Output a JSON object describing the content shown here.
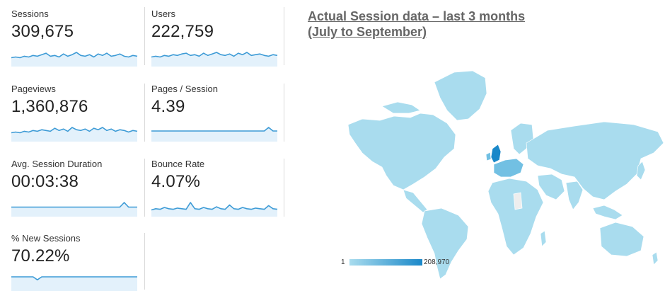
{
  "metrics": {
    "sessions": {
      "label": "Sessions",
      "value": "309,675",
      "trend": [
        6,
        7,
        6,
        8,
        7,
        9,
        8,
        10,
        12,
        8,
        9,
        7,
        11,
        8,
        10,
        13,
        9,
        8,
        10,
        7,
        11,
        9,
        12,
        8,
        9,
        11,
        8,
        7,
        9,
        8
      ]
    },
    "users": {
      "label": "Users",
      "value": "222,759",
      "trend": [
        7,
        8,
        7,
        9,
        8,
        10,
        9,
        11,
        12,
        9,
        10,
        8,
        12,
        9,
        11,
        13,
        10,
        9,
        11,
        8,
        12,
        10,
        13,
        9,
        10,
        11,
        9,
        8,
        10,
        9
      ]
    },
    "pageviews": {
      "label": "Pageviews",
      "value": "1,360,876",
      "trend": [
        6,
        7,
        6,
        8,
        7,
        9,
        8,
        10,
        9,
        8,
        12,
        9,
        11,
        8,
        13,
        10,
        9,
        11,
        8,
        12,
        10,
        13,
        9,
        11,
        8,
        10,
        9,
        7,
        9,
        8
      ]
    },
    "pages_per_session": {
      "label": "Pages / Session",
      "value": "4.39",
      "trend": [
        9,
        9,
        9,
        9,
        9,
        9,
        9,
        9,
        9,
        9,
        9,
        9,
        9,
        9,
        9,
        9,
        9,
        9,
        9,
        9,
        9,
        9,
        9,
        9,
        9,
        9,
        9,
        14,
        9,
        9
      ]
    },
    "avg_session_duration": {
      "label": "Avg. Session Duration",
      "value": "00:03:38",
      "trend": [
        8,
        8,
        8,
        8,
        8,
        8,
        8,
        8,
        8,
        8,
        8,
        8,
        8,
        8,
        8,
        8,
        8,
        8,
        8,
        8,
        8,
        8,
        8,
        8,
        8,
        8,
        15,
        8,
        8,
        8
      ]
    },
    "bounce_rate": {
      "label": "Bounce Rate",
      "value": "4.07%",
      "trend": [
        4,
        6,
        5,
        8,
        6,
        5,
        7,
        6,
        5,
        16,
        6,
        5,
        8,
        6,
        5,
        9,
        6,
        5,
        12,
        6,
        5,
        8,
        6,
        5,
        7,
        6,
        5,
        11,
        6,
        5
      ]
    },
    "new_sessions": {
      "label": "% New Sessions",
      "value": "70.22%",
      "trend": [
        10,
        10,
        10,
        10,
        10,
        10,
        7,
        10,
        10,
        10,
        10,
        10,
        10,
        10,
        10,
        10,
        10,
        10,
        10,
        10,
        10,
        10,
        10,
        10,
        10,
        10,
        10,
        10,
        10,
        10
      ]
    }
  },
  "map": {
    "title_line1": "Actual Session data – last 3 months",
    "title_line2": "(July to September)",
    "legend_min": "1",
    "legend_max": "208,970"
  },
  "colors": {
    "sparkline": "#3d9bd6",
    "sparkline_fill": "#e3f1fb",
    "map_low": "#a9dcee",
    "map_high": "#1a88c9"
  }
}
